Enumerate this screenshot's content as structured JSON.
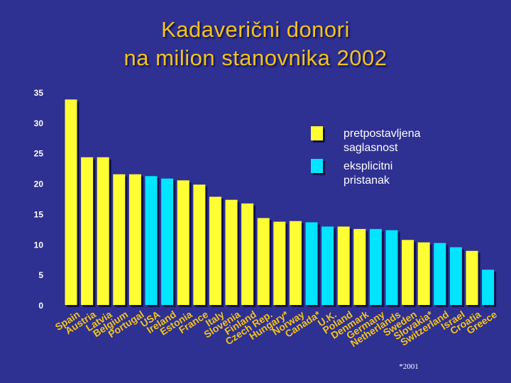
{
  "title": {
    "line1": "Kadaverični donori",
    "line2": "na milion stanovnika 2002"
  },
  "colors": {
    "background": "#2e3092",
    "presumed": "#ffff33",
    "explicit": "#00e5ff",
    "title": "#f2c31b",
    "labels": "#f2c31b"
  },
  "chart_data": {
    "type": "bar",
    "title": "Kadaverični donori na milion stanovnika 2002",
    "xlabel": "",
    "ylabel": "",
    "ylim": [
      0,
      35
    ],
    "yticks": [
      "0",
      "5",
      "10",
      "15",
      "20",
      "25",
      "30",
      "35"
    ],
    "grid": false,
    "legend_position": "top-right",
    "legend": [
      {
        "key": "presumed",
        "label_lines": [
          "pretpostavljena",
          "saglasnost"
        ]
      },
      {
        "key": "explicit",
        "label_lines": [
          "eksplicitni",
          "pristanak"
        ]
      }
    ],
    "categories": [
      "Spain",
      "Austria",
      "Latvia",
      "Belgium",
      "Portugal",
      "USA",
      "Ireland",
      "Estonia",
      "France",
      "Italy",
      "Slovenia",
      "Finland",
      "Czech Rep.",
      "Hungary*",
      "Norway",
      "Canada*",
      "U.K.",
      "Poland",
      "Denmark",
      "Germany",
      "Netherlands",
      "Sweden",
      "Slovakia*",
      "Switzerland",
      "Israel",
      "Croatia",
      "Greece"
    ],
    "values": [
      33.8,
      24.3,
      24.3,
      21.5,
      21.5,
      21.2,
      20.8,
      20.5,
      19.8,
      17.8,
      17.3,
      16.7,
      14.3,
      13.7,
      13.8,
      13.6,
      12.9,
      12.9,
      12.5,
      12.5,
      12.3,
      10.7,
      10.3,
      10.2,
      9.5,
      8.9,
      5.8
    ],
    "consent": [
      "presumed",
      "presumed",
      "presumed",
      "presumed",
      "presumed",
      "explicit",
      "explicit",
      "presumed",
      "presumed",
      "presumed",
      "presumed",
      "presumed",
      "presumed",
      "presumed",
      "presumed",
      "explicit",
      "explicit",
      "presumed",
      "presumed",
      "explicit",
      "explicit",
      "presumed",
      "presumed",
      "explicit",
      "explicit",
      "presumed",
      "explicit"
    ],
    "footnote": "*2001"
  }
}
